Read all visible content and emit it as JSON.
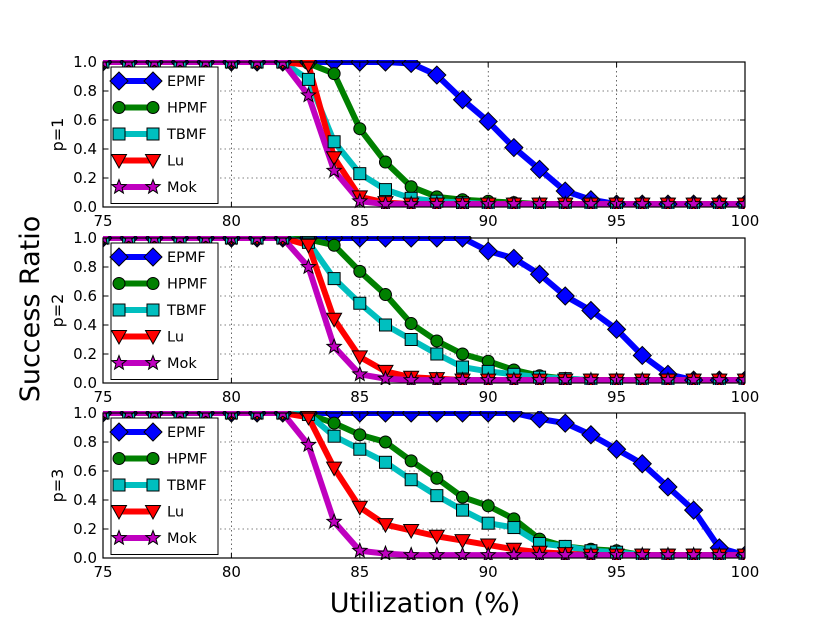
{
  "figure": {
    "ylabel": "Success Ratio",
    "xlabel": "Utilization (%)"
  },
  "chart_data": [
    {
      "type": "line",
      "panel_label": "p=1",
      "xlim": [
        75,
        100
      ],
      "ylim": [
        0,
        1
      ],
      "xticks": [
        75,
        80,
        85,
        90,
        95,
        100
      ],
      "yticks": [
        0.0,
        0.2,
        0.4,
        0.6,
        0.8,
        1.0
      ],
      "grid": true,
      "legend_position": "left",
      "x": [
        75,
        76,
        77,
        78,
        79,
        80,
        81,
        82,
        83,
        84,
        85,
        86,
        87,
        88,
        89,
        90,
        91,
        92,
        93,
        94,
        95,
        96,
        97,
        98,
        99,
        100
      ],
      "series": [
        {
          "name": "EPMF",
          "color": "#0000ff",
          "marker": "diamond",
          "values": [
            1,
            1,
            1,
            1,
            1,
            1,
            1,
            1,
            1,
            1,
            1,
            1,
            0.99,
            0.91,
            0.74,
            0.59,
            0.41,
            0.26,
            0.11,
            0.05,
            0.02,
            0.02,
            0.02,
            0.02,
            0.02,
            0.02
          ]
        },
        {
          "name": "HPMF",
          "color": "#008000",
          "marker": "circle",
          "values": [
            1,
            1,
            1,
            1,
            1,
            1,
            1,
            1,
            0.99,
            0.92,
            0.54,
            0.31,
            0.14,
            0.07,
            0.05,
            0.04,
            0.03,
            0.02,
            0.02,
            0.02,
            0.02,
            0.02,
            0.02,
            0.02,
            0.02,
            0.02
          ]
        },
        {
          "name": "TBMF",
          "color": "#00bfbf",
          "marker": "square",
          "values": [
            1,
            1,
            1,
            1,
            1,
            1,
            1,
            1,
            0.88,
            0.45,
            0.23,
            0.12,
            0.06,
            0.04,
            0.03,
            0.02,
            0.02,
            0.02,
            0.02,
            0.02,
            0.02,
            0.02,
            0.02,
            0.02,
            0.02,
            0.02
          ]
        },
        {
          "name": "Lu",
          "color": "#ff0000",
          "marker": "triangle-down",
          "values": [
            1,
            1,
            1,
            1,
            1,
            1,
            1,
            1,
            0.98,
            0.34,
            0.07,
            0.03,
            0.02,
            0.02,
            0.02,
            0.02,
            0.02,
            0.02,
            0.02,
            0.02,
            0.02,
            0.02,
            0.02,
            0.02,
            0.02,
            0.02
          ]
        },
        {
          "name": "Mok",
          "color": "#bf00bf",
          "marker": "star",
          "values": [
            1,
            1,
            1,
            1,
            1,
            1,
            1,
            1,
            0.77,
            0.25,
            0.04,
            0.02,
            0.02,
            0.02,
            0.02,
            0.02,
            0.02,
            0.02,
            0.02,
            0.02,
            0.02,
            0.02,
            0.02,
            0.02,
            0.02,
            0.02
          ]
        }
      ]
    },
    {
      "type": "line",
      "panel_label": "p=2",
      "xlim": [
        75,
        100
      ],
      "ylim": [
        0,
        1
      ],
      "xticks": [
        75,
        80,
        85,
        90,
        95,
        100
      ],
      "yticks": [
        0.0,
        0.2,
        0.4,
        0.6,
        0.8,
        1.0
      ],
      "grid": true,
      "legend_position": "left",
      "x": [
        75,
        76,
        77,
        78,
        79,
        80,
        81,
        82,
        83,
        84,
        85,
        86,
        87,
        88,
        89,
        90,
        91,
        92,
        93,
        94,
        95,
        96,
        97,
        98,
        99,
        100
      ],
      "series": [
        {
          "name": "EPMF",
          "color": "#0000ff",
          "marker": "diamond",
          "values": [
            1,
            1,
            1,
            1,
            1,
            1,
            1,
            1,
            1,
            1,
            1,
            1,
            1,
            1,
            1,
            0.91,
            0.86,
            0.75,
            0.6,
            0.5,
            0.37,
            0.19,
            0.06,
            0.02,
            0.02,
            0.02
          ]
        },
        {
          "name": "HPMF",
          "color": "#008000",
          "marker": "circle",
          "values": [
            1,
            1,
            1,
            1,
            1,
            1,
            1,
            1,
            0.99,
            0.95,
            0.77,
            0.61,
            0.41,
            0.29,
            0.2,
            0.15,
            0.09,
            0.05,
            0.03,
            0.02,
            0.02,
            0.02,
            0.02,
            0.02,
            0.02,
            0.02
          ]
        },
        {
          "name": "TBMF",
          "color": "#00bfbf",
          "marker": "square",
          "values": [
            1,
            1,
            1,
            1,
            1,
            1,
            1,
            1,
            0.97,
            0.72,
            0.55,
            0.4,
            0.3,
            0.2,
            0.11,
            0.08,
            0.06,
            0.04,
            0.03,
            0.02,
            0.02,
            0.02,
            0.02,
            0.02,
            0.02,
            0.02
          ]
        },
        {
          "name": "Lu",
          "color": "#ff0000",
          "marker": "triangle-down",
          "values": [
            1,
            1,
            1,
            1,
            1,
            1,
            1,
            1,
            0.95,
            0.44,
            0.18,
            0.08,
            0.04,
            0.03,
            0.02,
            0.02,
            0.02,
            0.02,
            0.02,
            0.02,
            0.02,
            0.02,
            0.02,
            0.02,
            0.02,
            0.02
          ]
        },
        {
          "name": "Mok",
          "color": "#bf00bf",
          "marker": "star",
          "values": [
            1,
            1,
            1,
            1,
            1,
            1,
            1,
            1,
            0.8,
            0.25,
            0.06,
            0.03,
            0.02,
            0.02,
            0.02,
            0.02,
            0.02,
            0.02,
            0.02,
            0.02,
            0.02,
            0.02,
            0.02,
            0.02,
            0.02,
            0.02
          ]
        }
      ]
    },
    {
      "type": "line",
      "panel_label": "p=3",
      "xlim": [
        75,
        100
      ],
      "ylim": [
        0,
        1
      ],
      "xticks": [
        75,
        80,
        85,
        90,
        95,
        100
      ],
      "yticks": [
        0.0,
        0.2,
        0.4,
        0.6,
        0.8,
        1.0
      ],
      "grid": true,
      "legend_position": "left",
      "x": [
        75,
        76,
        77,
        78,
        79,
        80,
        81,
        82,
        83,
        84,
        85,
        86,
        87,
        88,
        89,
        90,
        91,
        92,
        93,
        94,
        95,
        96,
        97,
        98,
        99,
        100
      ],
      "series": [
        {
          "name": "EPMF",
          "color": "#0000ff",
          "marker": "diamond",
          "values": [
            1,
            1,
            1,
            1,
            1,
            1,
            1,
            1,
            1,
            1,
            1,
            1,
            1,
            1,
            1,
            1,
            1,
            0.96,
            0.93,
            0.85,
            0.75,
            0.65,
            0.49,
            0.33,
            0.07,
            0.02
          ]
        },
        {
          "name": "HPMF",
          "color": "#008000",
          "marker": "circle",
          "values": [
            1,
            1,
            1,
            1,
            1,
            1,
            1,
            1,
            0.99,
            0.93,
            0.85,
            0.8,
            0.67,
            0.55,
            0.42,
            0.36,
            0.27,
            0.13,
            0.08,
            0.06,
            0.05,
            0.02,
            0.02,
            0.02,
            0.02,
            0.02
          ]
        },
        {
          "name": "TBMF",
          "color": "#00bfbf",
          "marker": "square",
          "values": [
            1,
            1,
            1,
            1,
            1,
            1,
            1,
            1,
            0.99,
            0.84,
            0.75,
            0.66,
            0.54,
            0.43,
            0.33,
            0.24,
            0.21,
            0.1,
            0.08,
            0.05,
            0.04,
            0.02,
            0.02,
            0.02,
            0.02,
            0.02
          ]
        },
        {
          "name": "Lu",
          "color": "#ff0000",
          "marker": "triangle-down",
          "values": [
            1,
            1,
            1,
            1,
            1,
            1,
            1,
            1,
            0.97,
            0.62,
            0.35,
            0.23,
            0.19,
            0.15,
            0.12,
            0.09,
            0.06,
            0.04,
            0.03,
            0.02,
            0.02,
            0.02,
            0.02,
            0.02,
            0.02,
            0.02
          ]
        },
        {
          "name": "Mok",
          "color": "#bf00bf",
          "marker": "star",
          "values": [
            1,
            1,
            1,
            1,
            1,
            1,
            1,
            1,
            0.78,
            0.25,
            0.05,
            0.03,
            0.02,
            0.02,
            0.02,
            0.02,
            0.02,
            0.02,
            0.02,
            0.02,
            0.02,
            0.02,
            0.02,
            0.02,
            0.02,
            0.02
          ]
        }
      ]
    }
  ]
}
